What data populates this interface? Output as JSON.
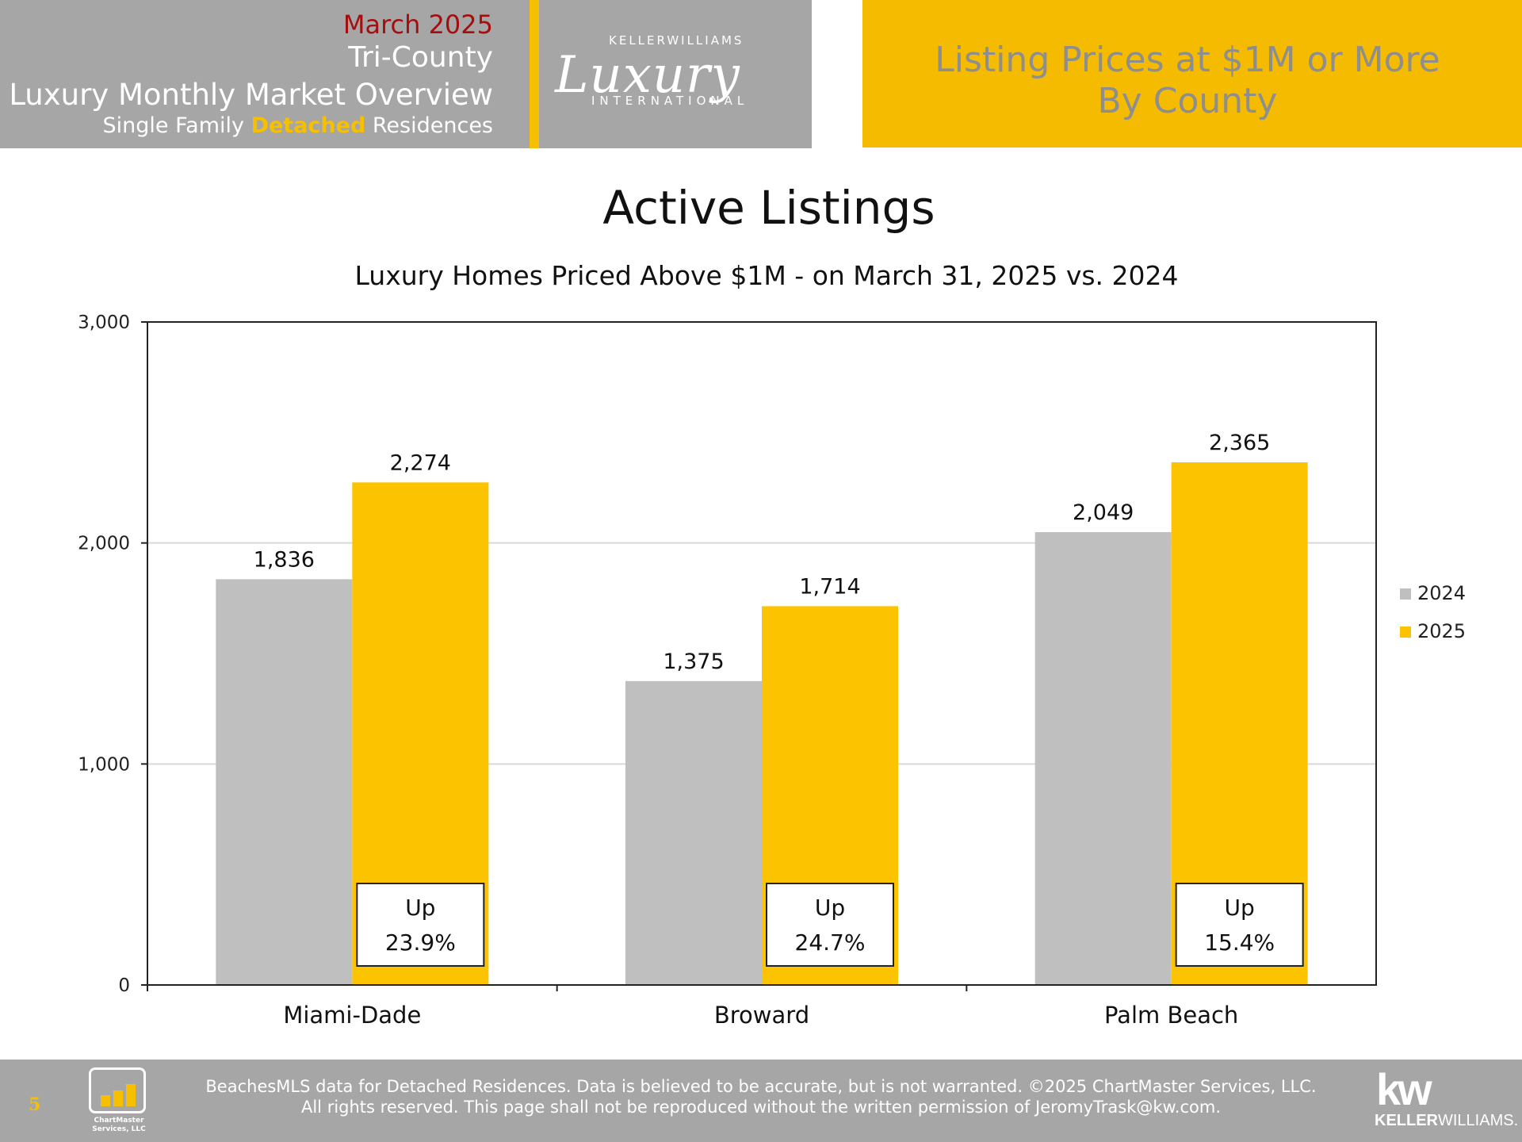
{
  "header": {
    "month": "March 2025",
    "region": "Tri-County",
    "overview": "Luxury Monthly Market Overview",
    "type_prefix": "Single Family ",
    "type_highlight": "Detached",
    "type_suffix": " Residences",
    "logo_top": "KELLERWILLIAMS",
    "logo_script": "Luxury",
    "logo_bottom": "INTERNATIONAL",
    "right_line1": "Listing Prices at $1M or More",
    "right_line2": "By County"
  },
  "chart_data": {
    "type": "bar",
    "title": "Active Listings",
    "subtitle": "Luxury Homes Priced Above $1M - on March 31,  2025 vs. 2024",
    "categories": [
      "Miami-Dade",
      "Broward",
      "Palm Beach"
    ],
    "series": [
      {
        "name": "2024",
        "color": "#bfbfbf",
        "values": [
          1836,
          1375,
          2049
        ],
        "labels": [
          "1,836",
          "1,375",
          "2,049"
        ]
      },
      {
        "name": "2025",
        "color": "#fcc400",
        "values": [
          2274,
          1714,
          2365
        ],
        "labels": [
          "2,274",
          "1,714",
          "2,365"
        ]
      }
    ],
    "ylim": [
      0,
      3000
    ],
    "yticks": [
      0,
      1000,
      2000,
      3000
    ],
    "ytick_labels": [
      "0",
      "1,000",
      "2,000",
      "3,000"
    ],
    "grid": true,
    "legend_position": "right",
    "annotations": [
      {
        "line1": "Up",
        "line2": "23.9%"
      },
      {
        "line1": "Up",
        "line2": "24.7%"
      },
      {
        "line1": "Up",
        "line2": "15.4%"
      }
    ]
  },
  "footer": {
    "page_number": "5",
    "chartmaster_name": "ChartMaster Services, LLC",
    "line1": "BeachesMLS data for Detached Residences.  Data is believed to be accurate, but is not warranted.   ©2025  ChartMaster Services, LLC.",
    "line2": "All rights reserved. This page shall not be reproduced without the written permission of JeromyTrask@kw.com.",
    "kw_logo": "kw",
    "kw_name_bold": "KELLER",
    "kw_name_rest": "WILLIAMS."
  }
}
